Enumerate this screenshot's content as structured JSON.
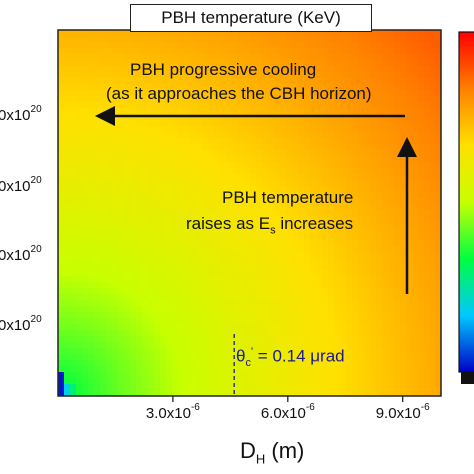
{
  "chart_data": {
    "type": "heatmap",
    "title": "PBH temperature (KeV)",
    "xlabel": "D",
    "xlabel_subscript": "H",
    "xlabel_unit": "(m)",
    "x_tick_labels": [
      {
        "value": 3e-06,
        "mantissa": "3.0x10",
        "exponent": "-6"
      },
      {
        "value": 6e-06,
        "mantissa": "6.0x10",
        "exponent": "-6"
      },
      {
        "value": 9e-06,
        "mantissa": "9.0x10",
        "exponent": "-6"
      }
    ],
    "y_tick_labels": [
      {
        "mantissa": "0x10",
        "exponent": "20"
      },
      {
        "mantissa": "0x10",
        "exponent": "20"
      },
      {
        "mantissa": "0x10",
        "exponent": "20"
      },
      {
        "mantissa": "0x10",
        "exponent": "20"
      }
    ],
    "xlim": [
      0,
      1e-05
    ],
    "grid": false,
    "colormap": [
      "#0000c8",
      "#00c8ff",
      "#00ff40",
      "#c8ff00",
      "#ffe000",
      "#ff8000",
      "#ff0000"
    ],
    "critical_line": {
      "x": 4.6e-06,
      "label": "θ",
      "label_sub": "c",
      "label_sup": "'",
      "label_rest": " = 0.14 μrad"
    },
    "annotations": {
      "cooling_line1": "PBH progressive cooling",
      "cooling_line2": "(as it approaches the CBH horizon)",
      "raise_line1": "PBH temperature",
      "raise_line2_a": "raises as E",
      "raise_line2_sub": "s",
      "raise_line2_b": " increases"
    }
  }
}
